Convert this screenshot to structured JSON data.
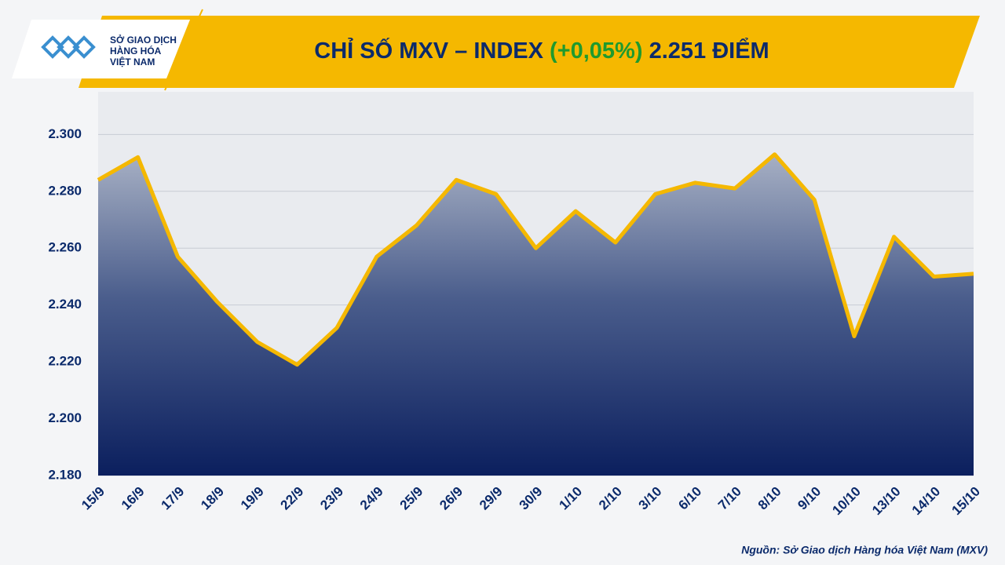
{
  "logo": [
    "SỞ GIAO DỊCH",
    "HÀNG HÓA",
    "VIỆT NAM"
  ],
  "source": "Nguồn: Sở Giao dịch Hàng hóa Việt Nam (MXV)",
  "chart_data": {
    "type": "area",
    "title": "CHỈ SỐ MXV – INDEX",
    "title_change": "(+0,05%)",
    "title_value": "2.251 ĐIỂM",
    "title_color": "#f5b800",
    "change_color": "#1f9a2e",
    "categories": [
      "15/9",
      "16/9",
      "17/9",
      "18/9",
      "19/9",
      "22/9",
      "23/9",
      "24/9",
      "25/9",
      "26/9",
      "29/9",
      "30/9",
      "1/10",
      "2/10",
      "3/10",
      "6/10",
      "7/10",
      "8/10",
      "9/10",
      "10/10",
      "13/10",
      "14/10",
      "15/10"
    ],
    "series": [
      {
        "name": "MXV-Index",
        "color": "#f5b800",
        "values": [
          2284,
          2292,
          2257,
          2241,
          2227,
          2219,
          2232,
          2257,
          2268,
          2284,
          2279,
          2260,
          2273,
          2262,
          2279,
          2283,
          2281,
          2293,
          2277,
          2229,
          2264,
          2250,
          2251
        ]
      }
    ],
    "ylim": [
      2180,
      2315
    ],
    "yticks": [
      {
        "value": 2180,
        "label": "2.180"
      },
      {
        "value": 2200,
        "label": "2.200"
      },
      {
        "value": 2220,
        "label": "2.220"
      },
      {
        "value": 2240,
        "label": "2.240"
      },
      {
        "value": 2260,
        "label": "2.260"
      },
      {
        "value": 2280,
        "label": "2.280"
      },
      {
        "value": 2300,
        "label": "2.300"
      }
    ],
    "grid": true
  }
}
